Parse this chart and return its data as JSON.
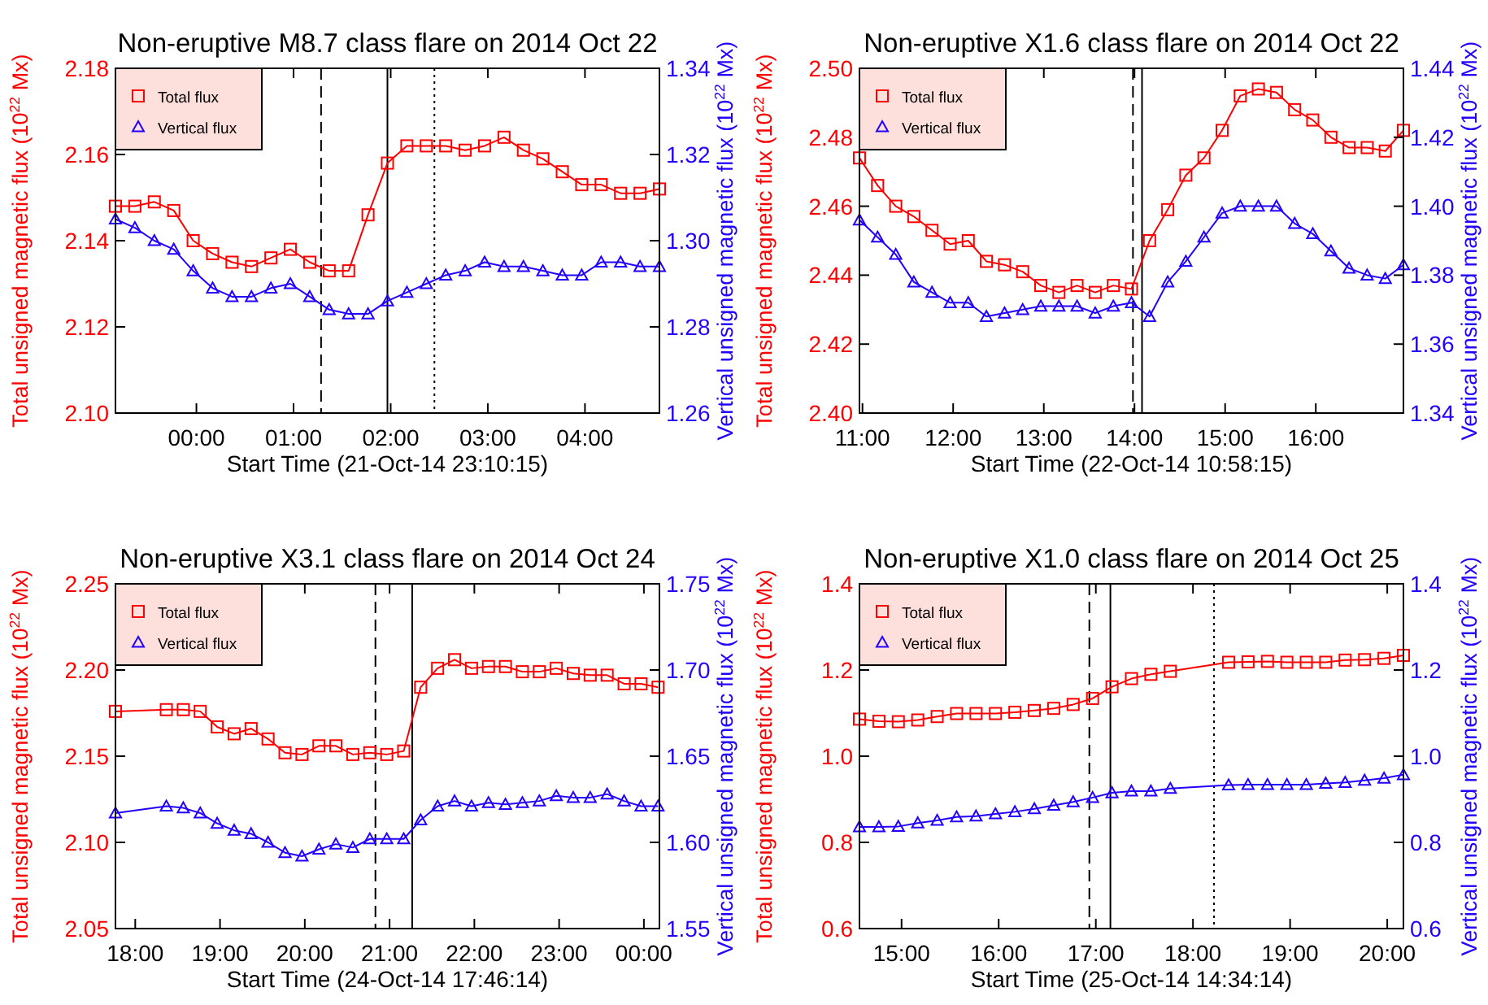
{
  "chart_data": [
    {
      "type": "line",
      "title": "Non-eruptive M8.7 class flare on 2014 Oct 22",
      "xlabel": "Start Time (21-Oct-14 23:10:15)",
      "ylabel": "Total unsigned magnetic flux (10$^{22}$ Mx)",
      "y2label": "Vertical unsigned magnetic flux (10$^{22}$ Mx)",
      "legend": "top left",
      "grid": false,
      "xlim": [
        "2014-10-21T23:10",
        "2014-10-22T04:46"
      ],
      "xticks": [
        {
          "value": "2014-10-22T00:00",
          "label": "00:00"
        },
        {
          "value": "2014-10-22T01:00",
          "label": "01:00"
        },
        {
          "value": "2014-10-22T02:00",
          "label": "02:00"
        },
        {
          "value": "2014-10-22T03:00",
          "label": "03:00"
        },
        {
          "value": "2014-10-22T04:00",
          "label": "04:00"
        }
      ],
      "ylim": [
        2.1,
        2.18
      ],
      "yticks": [
        {
          "value": 2.1,
          "label": "2.10"
        },
        {
          "value": 2.12,
          "label": "2.12"
        },
        {
          "value": 2.14,
          "label": "2.14"
        },
        {
          "value": 2.16,
          "label": "2.16"
        },
        {
          "value": 2.18,
          "label": "2.18"
        }
      ],
      "y2lim": [
        1.26,
        1.34
      ],
      "y2ticks": [
        {
          "value": 1.26,
          "label": "1.26"
        },
        {
          "value": 1.28,
          "label": "1.28"
        },
        {
          "value": 1.3,
          "label": "1.30"
        },
        {
          "value": 1.32,
          "label": "1.32"
        },
        {
          "value": 1.34,
          "label": "1.34"
        }
      ],
      "x": [
        "2014-10-21T23:10",
        "2014-10-21T23:22",
        "2014-10-21T23:34",
        "2014-10-21T23:46",
        "2014-10-21T23:58",
        "2014-10-22T00:10",
        "2014-10-22T00:22",
        "2014-10-22T00:34",
        "2014-10-22T00:46",
        "2014-10-22T00:58",
        "2014-10-22T01:10",
        "2014-10-22T01:22",
        "2014-10-22T01:34",
        "2014-10-22T01:46",
        "2014-10-22T01:58",
        "2014-10-22T02:10",
        "2014-10-22T02:22",
        "2014-10-22T02:34",
        "2014-10-22T02:46",
        "2014-10-22T02:58",
        "2014-10-22T03:10",
        "2014-10-22T03:22",
        "2014-10-22T03:34",
        "2014-10-22T03:46",
        "2014-10-22T03:58",
        "2014-10-22T04:10",
        "2014-10-22T04:22",
        "2014-10-22T04:34",
        "2014-10-22T04:46"
      ],
      "series": [
        {
          "name": "Total flux",
          "color": "#ff0000",
          "marker": "square",
          "values": [
            2.148,
            2.148,
            2.149,
            2.147,
            2.14,
            2.137,
            2.135,
            2.134,
            2.136,
            2.138,
            2.135,
            2.133,
            2.133,
            2.146,
            2.158,
            2.162,
            2.162,
            2.162,
            2.161,
            2.162,
            2.164,
            2.161,
            2.159,
            2.156,
            2.153,
            2.153,
            2.151,
            2.151,
            2.152
          ]
        },
        {
          "name": "Vertical flux",
          "color": "#2200ff",
          "marker": "triangle",
          "axis": "y2",
          "values": [
            1.305,
            1.303,
            1.3,
            1.298,
            1.293,
            1.289,
            1.287,
            1.287,
            1.289,
            1.29,
            1.287,
            1.284,
            1.283,
            1.283,
            1.286,
            1.288,
            1.29,
            1.292,
            1.293,
            1.295,
            1.294,
            1.294,
            1.293,
            1.292,
            1.292,
            1.295,
            1.295,
            1.294,
            1.294
          ]
        }
      ],
      "ref_lines": [
        {
          "axis": "x",
          "value": "2014-10-22T01:17",
          "line_style": "dashed",
          "color": "#000000"
        },
        {
          "axis": "x",
          "value": "2014-10-22T01:58",
          "line_style": "solid",
          "color": "#000000"
        },
        {
          "axis": "x",
          "value": "2014-10-22T02:27",
          "line_style": "dotted",
          "color": "#000000"
        }
      ]
    },
    {
      "type": "line",
      "title": "Non-eruptive X1.6 class flare on 2014 Oct 22",
      "xlabel": "Start Time (22-Oct-14 10:58:15)",
      "ylabel": "Total unsigned magnetic flux (10$^{22}$ Mx)",
      "y2label": "Vertical unsigned magnetic flux (10$^{22}$ Mx)",
      "legend": "top left",
      "grid": false,
      "xlim": [
        "2014-10-22T10:58",
        "2014-10-22T16:58"
      ],
      "xticks": [
        {
          "value": "2014-10-22T11:00",
          "label": "11:00"
        },
        {
          "value": "2014-10-22T12:00",
          "label": "12:00"
        },
        {
          "value": "2014-10-22T13:00",
          "label": "13:00"
        },
        {
          "value": "2014-10-22T14:00",
          "label": "14:00"
        },
        {
          "value": "2014-10-22T15:00",
          "label": "15:00"
        },
        {
          "value": "2014-10-22T16:00",
          "label": "16:00"
        }
      ],
      "ylim": [
        2.4,
        2.5
      ],
      "yticks": [
        {
          "value": 2.4,
          "label": "2.40"
        },
        {
          "value": 2.42,
          "label": "2.42"
        },
        {
          "value": 2.44,
          "label": "2.44"
        },
        {
          "value": 2.46,
          "label": "2.46"
        },
        {
          "value": 2.48,
          "label": "2.48"
        },
        {
          "value": 2.5,
          "label": "2.50"
        }
      ],
      "y2lim": [
        1.34,
        1.44
      ],
      "y2ticks": [
        {
          "value": 1.34,
          "label": "1.34"
        },
        {
          "value": 1.36,
          "label": "1.36"
        },
        {
          "value": 1.38,
          "label": "1.38"
        },
        {
          "value": 1.4,
          "label": "1.40"
        },
        {
          "value": 1.42,
          "label": "1.42"
        },
        {
          "value": 1.44,
          "label": "1.44"
        }
      ],
      "x": [
        "2014-10-22T10:58",
        "2014-10-22T11:10",
        "2014-10-22T11:22",
        "2014-10-22T11:34",
        "2014-10-22T11:46",
        "2014-10-22T11:58",
        "2014-10-22T12:10",
        "2014-10-22T12:22",
        "2014-10-22T12:34",
        "2014-10-22T12:46",
        "2014-10-22T12:58",
        "2014-10-22T13:10",
        "2014-10-22T13:22",
        "2014-10-22T13:34",
        "2014-10-22T13:46",
        "2014-10-22T13:58",
        "2014-10-22T14:10",
        "2014-10-22T14:22",
        "2014-10-22T14:34",
        "2014-10-22T14:46",
        "2014-10-22T14:58",
        "2014-10-22T15:10",
        "2014-10-22T15:22",
        "2014-10-22T15:34",
        "2014-10-22T15:46",
        "2014-10-22T15:58",
        "2014-10-22T16:10",
        "2014-10-22T16:22",
        "2014-10-22T16:34",
        "2014-10-22T16:46",
        "2014-10-22T16:58"
      ],
      "series": [
        {
          "name": "Total flux",
          "color": "#ff0000",
          "marker": "square",
          "values": [
            2.474,
            2.466,
            2.46,
            2.457,
            2.453,
            2.449,
            2.45,
            2.444,
            2.443,
            2.441,
            2.437,
            2.435,
            2.437,
            2.435,
            2.437,
            2.436,
            2.45,
            2.459,
            2.469,
            2.474,
            2.482,
            2.492,
            2.494,
            2.493,
            2.488,
            2.485,
            2.48,
            2.477,
            2.477,
            2.476,
            2.482
          ]
        },
        {
          "name": "Vertical flux",
          "color": "#2200ff",
          "marker": "triangle",
          "axis": "y2",
          "values": [
            1.396,
            1.391,
            1.386,
            1.378,
            1.375,
            1.372,
            1.372,
            1.368,
            1.369,
            1.37,
            1.371,
            1.371,
            1.371,
            1.369,
            1.371,
            1.372,
            1.368,
            1.378,
            1.384,
            1.391,
            1.398,
            1.4,
            1.4,
            1.4,
            1.395,
            1.392,
            1.387,
            1.382,
            1.38,
            1.379,
            1.383
          ]
        }
      ],
      "ref_lines": [
        {
          "axis": "x",
          "value": "2014-10-22T13:59",
          "line_style": "dashed",
          "color": "#000000"
        },
        {
          "axis": "x",
          "value": "2014-10-22T14:05",
          "line_style": "solid",
          "color": "#000000"
        }
      ]
    },
    {
      "type": "line",
      "title": "Non-eruptive X3.1 class flare on 2014 Oct 24",
      "xlabel": "Start Time (24-Oct-14 17:46:14)",
      "ylabel": "Total unsigned magnetic flux (10$^{22}$ Mx)",
      "y2label": "Vertical unsigned magnetic flux (10$^{22}$ Mx)",
      "legend": "top left",
      "grid": false,
      "xlim": [
        "2014-10-24T17:46",
        "2014-10-25T00:11"
      ],
      "xticks": [
        {
          "value": "2014-10-24T18:00",
          "label": "18:00"
        },
        {
          "value": "2014-10-24T19:00",
          "label": "19:00"
        },
        {
          "value": "2014-10-24T20:00",
          "label": "20:00"
        },
        {
          "value": "2014-10-24T21:00",
          "label": "21:00"
        },
        {
          "value": "2014-10-24T22:00",
          "label": "22:00"
        },
        {
          "value": "2014-10-24T23:00",
          "label": "23:00"
        },
        {
          "value": "2014-10-25T00:00",
          "label": "00:00"
        }
      ],
      "ylim": [
        2.05,
        2.25
      ],
      "yticks": [
        {
          "value": 2.05,
          "label": "2.05"
        },
        {
          "value": 2.1,
          "label": "2.10"
        },
        {
          "value": 2.15,
          "label": "2.15"
        },
        {
          "value": 2.2,
          "label": "2.20"
        },
        {
          "value": 2.25,
          "label": "2.25"
        }
      ],
      "y2lim": [
        1.55,
        1.75
      ],
      "y2ticks": [
        {
          "value": 1.55,
          "label": "1.55"
        },
        {
          "value": 1.6,
          "label": "1.60"
        },
        {
          "value": 1.65,
          "label": "1.65"
        },
        {
          "value": 1.7,
          "label": "1.70"
        },
        {
          "value": 1.75,
          "label": "1.75"
        }
      ],
      "x": [
        "2014-10-24T17:46",
        "2014-10-24T18:22",
        "2014-10-24T18:34",
        "2014-10-24T18:46",
        "2014-10-24T18:58",
        "2014-10-24T19:10",
        "2014-10-24T19:22",
        "2014-10-24T19:34",
        "2014-10-24T19:46",
        "2014-10-24T19:58",
        "2014-10-24T20:10",
        "2014-10-24T20:22",
        "2014-10-24T20:34",
        "2014-10-24T20:46",
        "2014-10-24T20:58",
        "2014-10-24T21:10",
        "2014-10-24T21:22",
        "2014-10-24T21:34",
        "2014-10-24T21:46",
        "2014-10-24T21:58",
        "2014-10-24T22:10",
        "2014-10-24T22:22",
        "2014-10-24T22:34",
        "2014-10-24T22:46",
        "2014-10-24T22:58",
        "2014-10-24T23:10",
        "2014-10-24T23:22",
        "2014-10-24T23:34",
        "2014-10-24T23:46",
        "2014-10-24T23:58",
        "2014-10-25T00:10"
      ],
      "series": [
        {
          "name": "Total flux",
          "color": "#ff0000",
          "marker": "square",
          "values": [
            2.176,
            2.177,
            2.177,
            2.176,
            2.167,
            2.163,
            2.166,
            2.16,
            2.152,
            2.151,
            2.156,
            2.156,
            2.151,
            2.152,
            2.151,
            2.153,
            2.19,
            2.201,
            2.206,
            2.201,
            2.202,
            2.202,
            2.199,
            2.199,
            2.201,
            2.198,
            2.197,
            2.197,
            2.192,
            2.192,
            2.19
          ]
        },
        {
          "name": "Vertical flux",
          "color": "#2200ff",
          "marker": "triangle",
          "axis": "y2",
          "values": [
            1.617,
            1.621,
            1.62,
            1.617,
            1.611,
            1.607,
            1.605,
            1.6,
            1.594,
            1.592,
            1.596,
            1.599,
            1.597,
            1.602,
            1.602,
            1.602,
            1.613,
            1.621,
            1.624,
            1.621,
            1.623,
            1.622,
            1.623,
            1.624,
            1.627,
            1.626,
            1.626,
            1.628,
            1.624,
            1.621,
            1.621
          ]
        }
      ],
      "ref_lines": [
        {
          "axis": "x",
          "value": "2014-10-24T20:50",
          "line_style": "dashed",
          "color": "#000000"
        },
        {
          "axis": "x",
          "value": "2014-10-24T21:16",
          "line_style": "solid",
          "color": "#000000"
        }
      ]
    },
    {
      "type": "line",
      "title": "Non-eruptive X1.0 class flare on 2014 Oct 25",
      "xlabel": "Start Time (25-Oct-14 14:34:14)",
      "ylabel": "Total unsigned magnetic flux (10$^{22}$ Mx)",
      "y2label": "Vertical unsigned magnetic flux (10$^{22}$ Mx)",
      "legend": "top left",
      "grid": false,
      "xlim": [
        "2014-10-25T14:34",
        "2014-10-25T20:10"
      ],
      "xticks": [
        {
          "value": "2014-10-25T15:00",
          "label": "15:00"
        },
        {
          "value": "2014-10-25T16:00",
          "label": "16:00"
        },
        {
          "value": "2014-10-25T17:00",
          "label": "17:00"
        },
        {
          "value": "2014-10-25T18:00",
          "label": "18:00"
        },
        {
          "value": "2014-10-25T19:00",
          "label": "19:00"
        },
        {
          "value": "2014-10-25T20:00",
          "label": "20:00"
        }
      ],
      "ylim": [
        0.6,
        1.4
      ],
      "yticks": [
        0.6,
        0.8,
        {
          "value": 1,
          "label": "1.0"
        },
        1.2,
        1.4
      ],
      "y2lim": [
        0.6,
        1.4
      ],
      "y2ticks": [
        0.6,
        0.8,
        {
          "value": 1,
          "label": "1.0"
        },
        1.2,
        1.4
      ],
      "x": [
        "2014-10-25T14:34",
        "2014-10-25T14:46",
        "2014-10-25T14:58",
        "2014-10-25T15:10",
        "2014-10-25T15:22",
        "2014-10-25T15:34",
        "2014-10-25T15:46",
        "2014-10-25T15:58",
        "2014-10-25T16:10",
        "2014-10-25T16:22",
        "2014-10-25T16:34",
        "2014-10-25T16:46",
        "2014-10-25T16:58",
        "2014-10-25T17:10",
        "2014-10-25T17:22",
        "2014-10-25T17:34",
        "2014-10-25T17:46",
        "2014-10-25T18:22",
        "2014-10-25T18:34",
        "2014-10-25T18:46",
        "2014-10-25T18:58",
        "2014-10-25T19:10",
        "2014-10-25T19:22",
        "2014-10-25T19:34",
        "2014-10-25T19:46",
        "2014-10-25T19:58",
        "2014-10-25T20:10"
      ],
      "series": [
        {
          "name": "Total flux",
          "color": "#ff0000",
          "marker": "square",
          "values": [
            1.086,
            1.081,
            1.08,
            1.084,
            1.092,
            1.099,
            1.099,
            1.099,
            1.102,
            1.106,
            1.111,
            1.12,
            1.134,
            1.161,
            1.18,
            1.19,
            1.197,
            1.218,
            1.219,
            1.22,
            1.218,
            1.218,
            1.218,
            1.223,
            1.224,
            1.227,
            1.234
          ]
        },
        {
          "name": "Vertical flux",
          "color": "#2200ff",
          "marker": "triangle",
          "axis": "y2",
          "values": [
            0.836,
            0.836,
            0.837,
            0.845,
            0.851,
            0.859,
            0.861,
            0.866,
            0.871,
            0.878,
            0.886,
            0.894,
            0.904,
            0.915,
            0.919,
            0.919,
            0.925,
            0.933,
            0.934,
            0.934,
            0.934,
            0.934,
            0.937,
            0.939,
            0.944,
            0.949,
            0.957
          ]
        }
      ],
      "ref_lines": [
        {
          "axis": "x",
          "value": "2014-10-25T16:56",
          "line_style": "dashed",
          "color": "#000000"
        },
        {
          "axis": "x",
          "value": "2014-10-25T17:09",
          "line_style": "solid",
          "color": "#000000"
        },
        {
          "axis": "x",
          "value": "2014-10-25T18:13",
          "line_style": "dotted",
          "color": "#000000"
        }
      ]
    }
  ]
}
